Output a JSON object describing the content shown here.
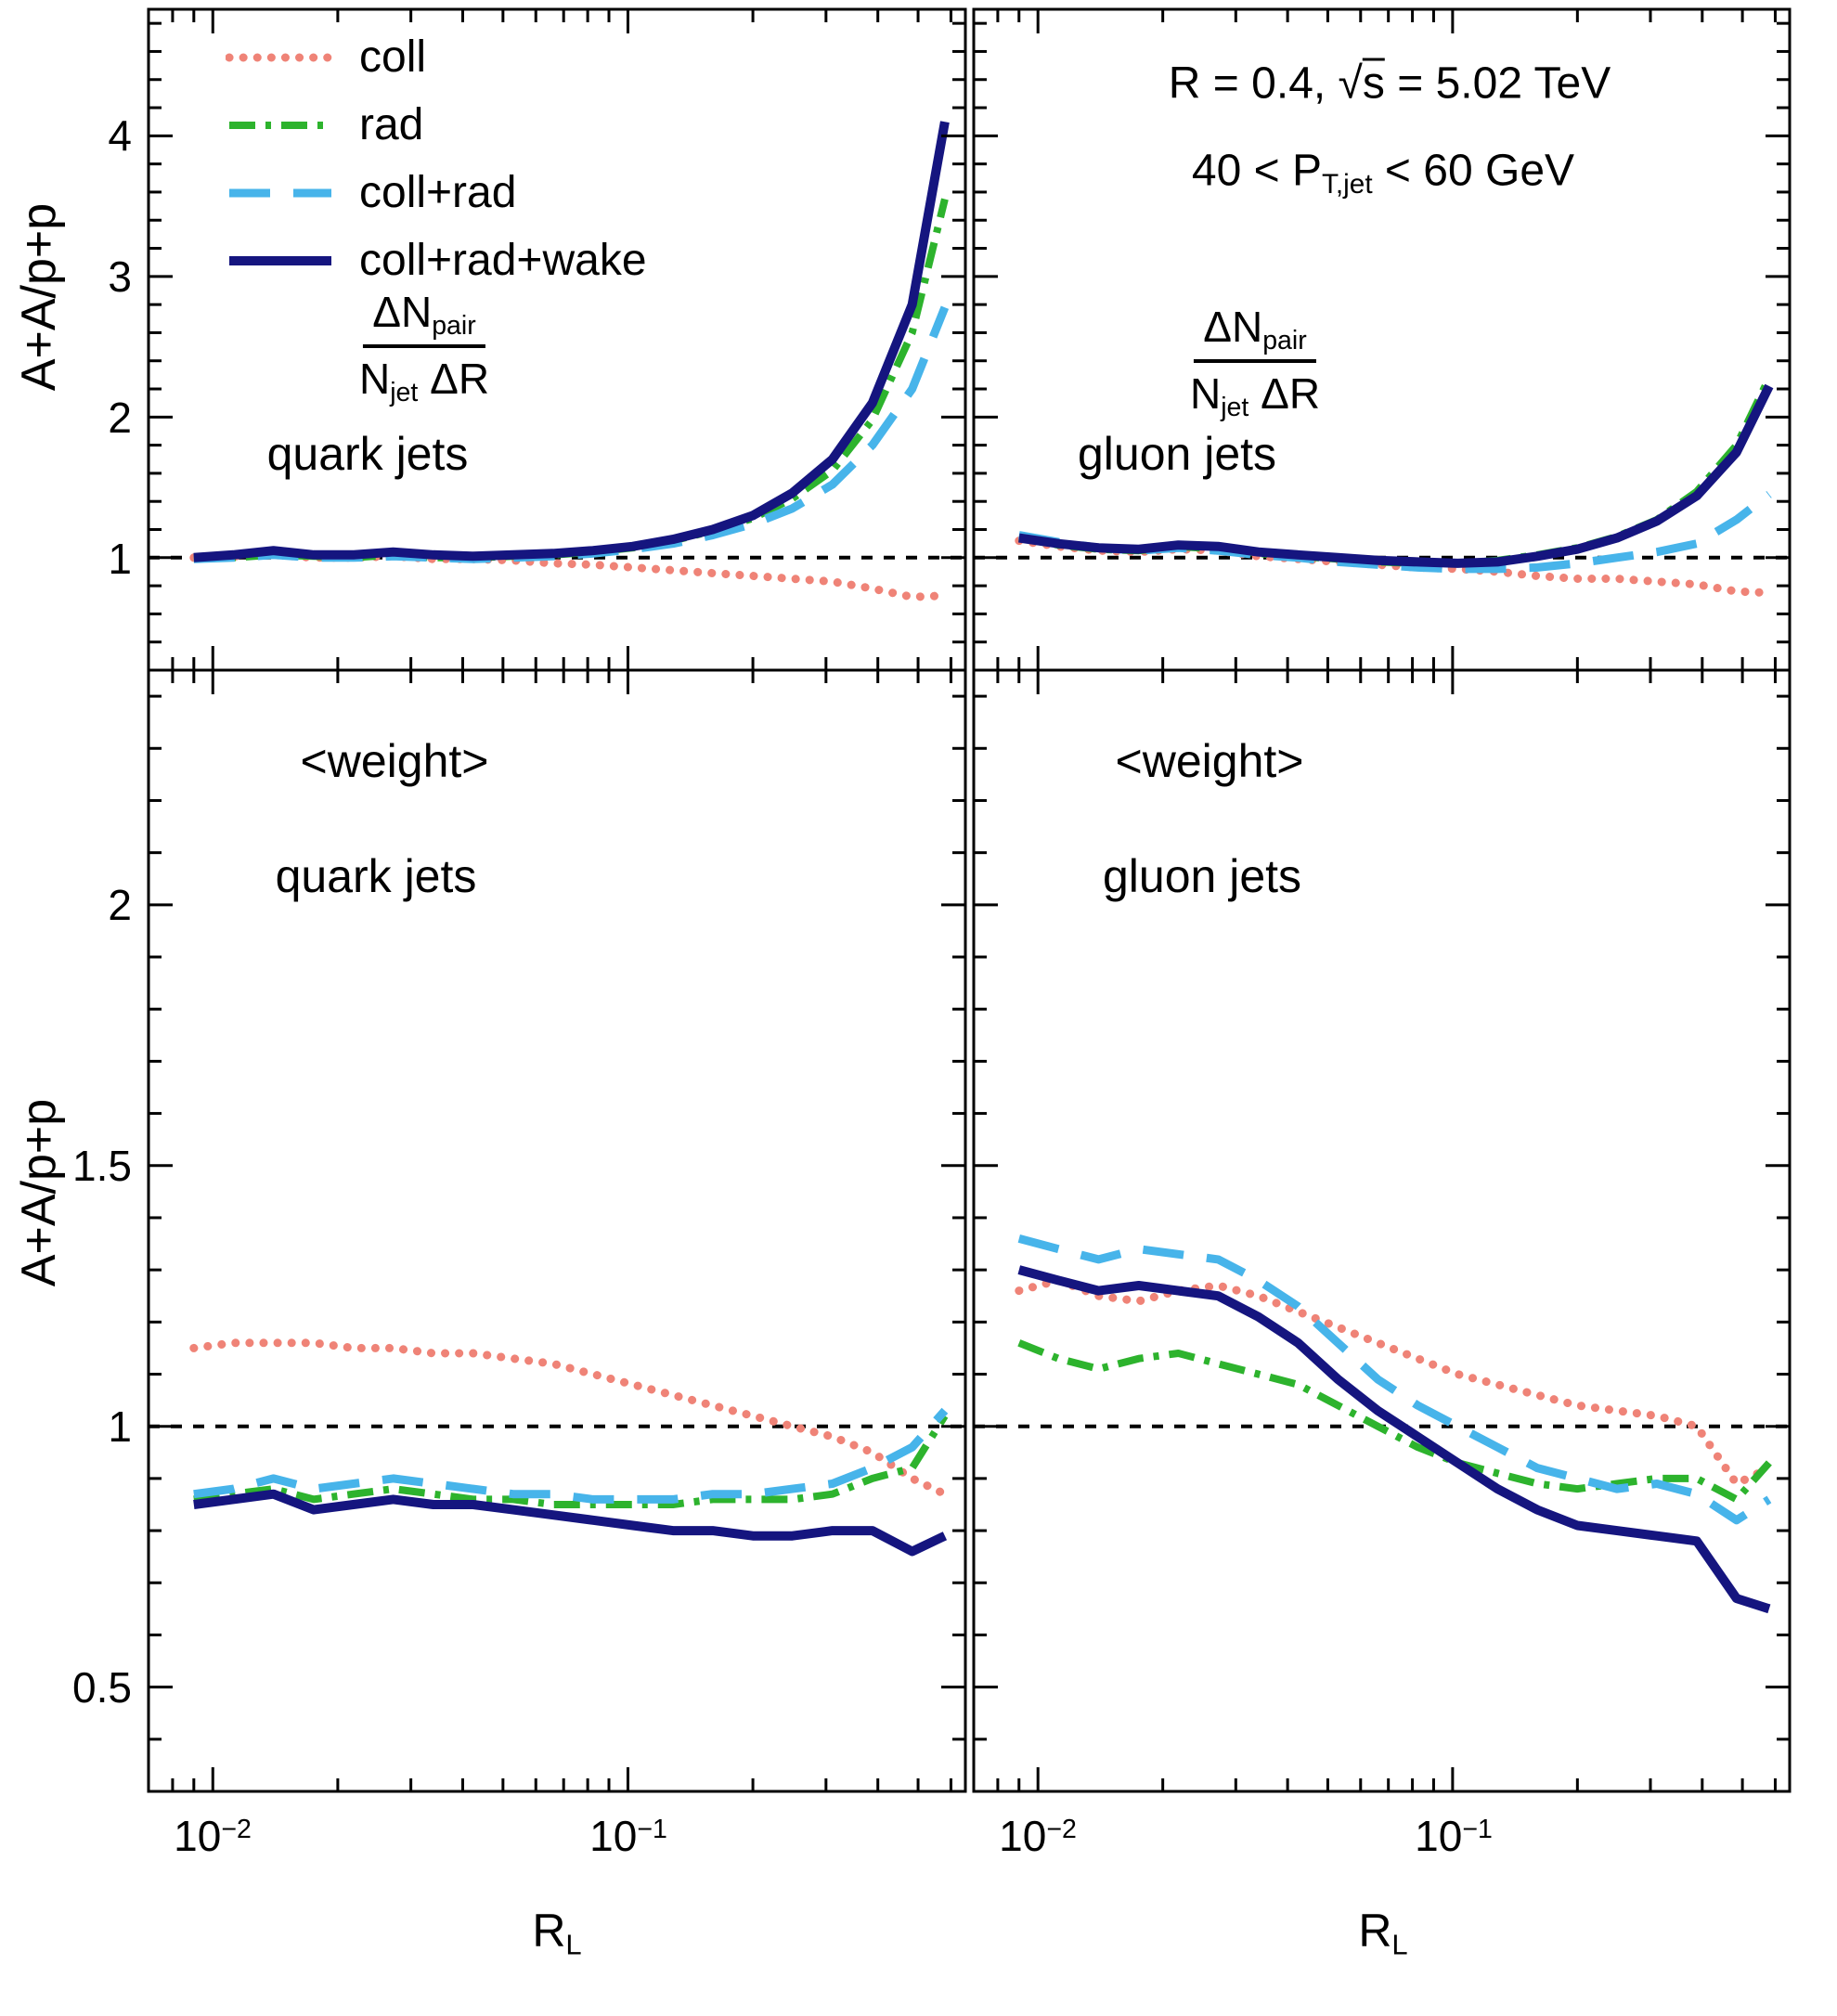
{
  "figure": {
    "background": "#ffffff",
    "border_color": "#000000"
  },
  "header": {
    "line1_pre": "R = 0.4, √",
    "line1_s": "s",
    "line1_post": " = 5.02 TeV",
    "line2_pre": "40 < P",
    "line2_sub": "T,jet",
    "line2_post": " < 60 GeV"
  },
  "formula": {
    "num_main": "ΔN",
    "num_sub": "pair",
    "den_main": "N",
    "den_sub": "jet",
    "den_tail": " ΔR"
  },
  "panel_text": {
    "top_left_jet": "quark jets",
    "top_right_jet": "gluon jets",
    "bottom_left_obs": "<weight>",
    "bottom_right_obs": "<weight>",
    "bottom_left_jet": "quark jets",
    "bottom_right_jet": "gluon jets"
  },
  "axes": {
    "y_label": "A+A/p+p",
    "x_label_main": "R",
    "x_label_sub": "L",
    "top_yticks": [
      "1",
      "2",
      "3",
      "4"
    ],
    "bottom_yticks": [
      "0.5",
      "1",
      "1.5",
      "2"
    ],
    "xtick2_base": "10",
    "xtick2_exp": "−2",
    "xtick1_base": "10",
    "xtick1_exp": "−1"
  },
  "legend": {
    "items": [
      {
        "series": "coll",
        "label": "coll"
      },
      {
        "series": "rad",
        "label": "rad"
      },
      {
        "series": "coll+rad",
        "label": "coll+rad"
      },
      {
        "series": "coll+rad+wake",
        "label": "coll+rad+wake"
      }
    ]
  },
  "series_styles": {
    "coll": {
      "color": "#ef8377",
      "dash": "0.1 15",
      "width": 9,
      "cap": "round"
    },
    "rad": {
      "color": "#2db32d",
      "dash": "28 11 6 11",
      "width": 8,
      "cap": "butt"
    },
    "coll+rad": {
      "color": "#47b4ea",
      "dash": "44 25",
      "width": 9,
      "cap": "butt"
    },
    "coll+rad+wake": {
      "color": "#15157f",
      "dash": "none",
      "width": 10,
      "cap": "butt"
    }
  },
  "reference_line": {
    "color": "#000000",
    "dash": "12 12",
    "width": 4,
    "y": 1
  },
  "chart_data": [
    {
      "type": "line",
      "panel": "tl",
      "title": "A+A/p+p ratio of ΔN_pair/(N_jet ΔR), quark jets",
      "xscale": "log",
      "xlim": [
        0.007,
        0.65
      ],
      "ylim": [
        0.2,
        4.9
      ],
      "xticks": [
        0.01,
        0.1
      ],
      "yticks": [
        1,
        2,
        3,
        4
      ],
      "yminor_step": 0.2,
      "reference_line_y": 1,
      "x": [
        0.009,
        0.0112,
        0.014,
        0.0175,
        0.0218,
        0.0272,
        0.034,
        0.0424,
        0.0529,
        0.066,
        0.0824,
        0.1028,
        0.1283,
        0.16,
        0.2,
        0.249,
        0.311,
        0.388,
        0.484,
        0.58
      ],
      "series": [
        {
          "name": "coll",
          "values": [
            1.0,
            1.01,
            1.02,
            1.0,
            1.0,
            1.01,
            0.99,
            0.99,
            0.98,
            0.96,
            0.95,
            0.93,
            0.91,
            0.89,
            0.87,
            0.85,
            0.83,
            0.78,
            0.72,
            0.73
          ]
        },
        {
          "name": "rad",
          "values": [
            0.99,
            1.0,
            1.02,
            1.01,
            1.0,
            1.02,
            1.0,
            1.0,
            1.01,
            1.02,
            1.04,
            1.07,
            1.12,
            1.19,
            1.28,
            1.42,
            1.62,
            1.98,
            2.6,
            3.55
          ]
        },
        {
          "name": "coll+rad",
          "values": [
            0.99,
            1.0,
            1.02,
            1.0,
            1.0,
            1.01,
            1.0,
            0.99,
            1.0,
            1.01,
            1.03,
            1.06,
            1.1,
            1.16,
            1.24,
            1.35,
            1.52,
            1.8,
            2.2,
            2.78
          ]
        },
        {
          "name": "coll+rad+wake",
          "values": [
            1.0,
            1.02,
            1.05,
            1.02,
            1.02,
            1.04,
            1.02,
            1.01,
            1.02,
            1.03,
            1.05,
            1.08,
            1.13,
            1.2,
            1.3,
            1.46,
            1.7,
            2.1,
            2.8,
            4.1
          ]
        }
      ]
    },
    {
      "type": "line",
      "panel": "tr",
      "title": "A+A/p+p ratio of ΔN_pair/(N_jet ΔR), gluon jets",
      "xscale": "log",
      "xlim": [
        0.007,
        0.65
      ],
      "ylim": [
        0.2,
        4.9
      ],
      "xticks": [
        0.01,
        0.1
      ],
      "yticks": [
        1,
        2,
        3,
        4
      ],
      "yminor_step": 0.2,
      "reference_line_y": 1,
      "x": [
        0.009,
        0.0112,
        0.014,
        0.0175,
        0.0218,
        0.0272,
        0.034,
        0.0424,
        0.0529,
        0.066,
        0.0824,
        0.1028,
        0.1283,
        0.16,
        0.2,
        0.249,
        0.311,
        0.388,
        0.484,
        0.58
      ],
      "series": [
        {
          "name": "coll",
          "values": [
            1.12,
            1.08,
            1.05,
            1.04,
            1.06,
            1.05,
            1.01,
            0.99,
            0.97,
            0.95,
            0.93,
            0.92,
            0.9,
            0.87,
            0.85,
            0.85,
            0.83,
            0.81,
            0.76,
            0.75
          ]
        },
        {
          "name": "rad",
          "values": [
            1.14,
            1.09,
            1.06,
            1.05,
            1.08,
            1.06,
            1.03,
            1.01,
            0.99,
            0.97,
            0.96,
            0.96,
            0.98,
            1.02,
            1.07,
            1.15,
            1.27,
            1.47,
            1.8,
            2.28
          ]
        },
        {
          "name": "coll+rad",
          "values": [
            1.16,
            1.11,
            1.07,
            1.05,
            1.07,
            1.05,
            1.02,
            1.0,
            0.97,
            0.95,
            0.93,
            0.92,
            0.92,
            0.93,
            0.96,
            1.0,
            1.04,
            1.1,
            1.27,
            1.45
          ]
        },
        {
          "name": "coll+rad+wake",
          "values": [
            1.14,
            1.1,
            1.07,
            1.06,
            1.09,
            1.08,
            1.04,
            1.02,
            1.0,
            0.98,
            0.97,
            0.96,
            0.97,
            1.01,
            1.06,
            1.14,
            1.26,
            1.44,
            1.75,
            2.22
          ]
        }
      ]
    },
    {
      "type": "line",
      "panel": "bl",
      "title": "A+A/p+p ratio of <weight>, quark jets",
      "xscale": "log",
      "xlim": [
        0.007,
        0.65
      ],
      "ylim": [
        0.3,
        2.45
      ],
      "xticks": [
        0.01,
        0.1
      ],
      "yticks": [
        0.5,
        1,
        1.5,
        2
      ],
      "yminor_step": 0.1,
      "reference_line_y": 1,
      "x": [
        0.009,
        0.0112,
        0.014,
        0.0175,
        0.0218,
        0.0272,
        0.034,
        0.0424,
        0.0529,
        0.066,
        0.0824,
        0.1028,
        0.1283,
        0.16,
        0.2,
        0.249,
        0.311,
        0.388,
        0.484,
        0.58
      ],
      "series": [
        {
          "name": "coll",
          "values": [
            1.15,
            1.16,
            1.16,
            1.16,
            1.15,
            1.15,
            1.14,
            1.14,
            1.13,
            1.12,
            1.1,
            1.08,
            1.06,
            1.04,
            1.02,
            1.0,
            0.98,
            0.95,
            0.9,
            0.87
          ]
        },
        {
          "name": "rad",
          "values": [
            0.86,
            0.87,
            0.88,
            0.86,
            0.87,
            0.88,
            0.87,
            0.86,
            0.86,
            0.85,
            0.85,
            0.85,
            0.85,
            0.86,
            0.86,
            0.86,
            0.87,
            0.9,
            0.92,
            1.02
          ]
        },
        {
          "name": "coll+rad",
          "values": [
            0.87,
            0.88,
            0.9,
            0.88,
            0.89,
            0.9,
            0.89,
            0.88,
            0.87,
            0.87,
            0.86,
            0.86,
            0.86,
            0.87,
            0.87,
            0.88,
            0.89,
            0.92,
            0.96,
            1.03
          ]
        },
        {
          "name": "coll+rad+wake",
          "values": [
            0.85,
            0.86,
            0.87,
            0.84,
            0.85,
            0.86,
            0.85,
            0.85,
            0.84,
            0.83,
            0.82,
            0.81,
            0.8,
            0.8,
            0.79,
            0.79,
            0.8,
            0.8,
            0.76,
            0.79
          ]
        }
      ]
    },
    {
      "type": "line",
      "panel": "br",
      "title": "A+A/p+p ratio of <weight>, gluon jets",
      "xscale": "log",
      "xlim": [
        0.007,
        0.65
      ],
      "ylim": [
        0.3,
        2.45
      ],
      "xticks": [
        0.01,
        0.1
      ],
      "yticks": [
        0.5,
        1,
        1.5,
        2
      ],
      "yminor_step": 0.1,
      "reference_line_y": 1,
      "x": [
        0.009,
        0.0112,
        0.014,
        0.0175,
        0.0218,
        0.0272,
        0.034,
        0.0424,
        0.0529,
        0.066,
        0.0824,
        0.1028,
        0.1283,
        0.16,
        0.2,
        0.249,
        0.311,
        0.388,
        0.484,
        0.58
      ],
      "series": [
        {
          "name": "coll",
          "values": [
            1.26,
            1.28,
            1.25,
            1.24,
            1.26,
            1.27,
            1.25,
            1.22,
            1.19,
            1.16,
            1.13,
            1.1,
            1.08,
            1.06,
            1.04,
            1.03,
            1.02,
            1.0,
            0.89,
            0.92
          ]
        },
        {
          "name": "rad",
          "values": [
            1.16,
            1.13,
            1.11,
            1.13,
            1.14,
            1.12,
            1.1,
            1.08,
            1.04,
            1.0,
            0.96,
            0.93,
            0.91,
            0.89,
            0.88,
            0.89,
            0.9,
            0.9,
            0.86,
            0.93
          ]
        },
        {
          "name": "coll+rad",
          "values": [
            1.36,
            1.34,
            1.32,
            1.34,
            1.33,
            1.32,
            1.28,
            1.23,
            1.16,
            1.09,
            1.04,
            1.0,
            0.96,
            0.92,
            0.9,
            0.88,
            0.89,
            0.87,
            0.82,
            0.86
          ]
        },
        {
          "name": "coll+rad+wake",
          "values": [
            1.3,
            1.28,
            1.26,
            1.27,
            1.26,
            1.25,
            1.21,
            1.16,
            1.09,
            1.03,
            0.98,
            0.93,
            0.88,
            0.84,
            0.81,
            0.8,
            0.79,
            0.78,
            0.67,
            0.65
          ]
        }
      ]
    }
  ]
}
